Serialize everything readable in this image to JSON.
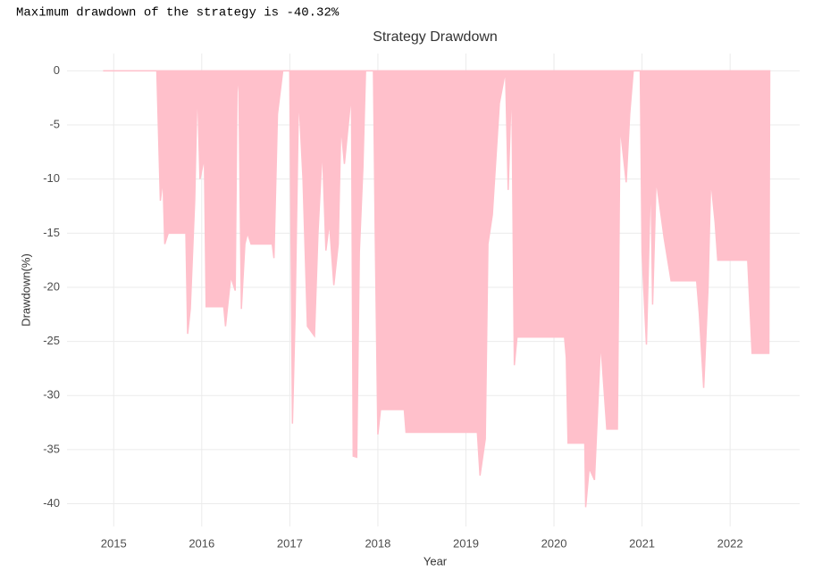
{
  "header": {
    "text": "Maximum drawdown of the strategy is -40.32%"
  },
  "chart_data": {
    "type": "area",
    "title": "Strategy Drawdown",
    "x_label": "Year",
    "y_label": "Drawdown(%)",
    "color": "#ffc0cb",
    "grid": true,
    "xlim": [
      2014.47,
      2022.79
    ],
    "ylim": [
      -42.1,
      1.6
    ],
    "xticks": [
      2015,
      2016,
      2017,
      2018,
      2019,
      2020,
      2021,
      2022
    ],
    "yticks": [
      0,
      -5,
      -10,
      -15,
      -20,
      -25,
      -30,
      -35,
      -40
    ],
    "x": [
      2014.88,
      2015.49,
      2015.5,
      2015.53,
      2015.56,
      2015.58,
      2015.62,
      2015.82,
      2015.84,
      2015.87,
      2015.92,
      2015.95,
      2015.98,
      2016.03,
      2016.05,
      2016.25,
      2016.27,
      2016.33,
      2016.38,
      2016.4,
      2016.42,
      2016.45,
      2016.49,
      2016.52,
      2016.56,
      2016.8,
      2016.82,
      2016.86,
      2016.92,
      2017.0,
      2017.03,
      2017.06,
      2017.1,
      2017.15,
      2017.2,
      2017.28,
      2017.32,
      2017.37,
      2017.41,
      2017.45,
      2017.5,
      2017.55,
      2017.58,
      2017.62,
      2017.7,
      2017.72,
      2017.76,
      2017.79,
      2017.83,
      2017.86,
      2017.95,
      2017.97,
      2018.0,
      2018.03,
      2018.3,
      2018.32,
      2019.13,
      2019.16,
      2019.22,
      2019.25,
      2019.3,
      2019.38,
      2019.45,
      2019.48,
      2019.52,
      2019.55,
      2019.58,
      2020.12,
      2020.14,
      2020.16,
      2020.35,
      2020.36,
      2020.4,
      2020.46,
      2020.53,
      2020.6,
      2020.72,
      2020.75,
      2020.82,
      2020.86,
      2020.9,
      2020.98,
      2021.0,
      2021.05,
      2021.1,
      2021.12,
      2021.16,
      2021.25,
      2021.33,
      2021.62,
      2021.65,
      2021.7,
      2021.75,
      2021.78,
      2021.83,
      2021.86,
      2022.2,
      2022.25,
      2022.44,
      2022.45
    ],
    "values": [
      0,
      0,
      -3,
      -12,
      -10,
      -16,
      -15,
      -15,
      -24.3,
      -22,
      -12,
      -1,
      -10,
      -8,
      -21.8,
      -21.8,
      -23.6,
      -19,
      -20.3,
      -2,
      0,
      -22,
      -16,
      -15,
      -16,
      -16,
      -17.3,
      -4,
      0,
      0,
      -32.6,
      -22.6,
      -2,
      -10,
      -23.6,
      -24.5,
      -15,
      -7,
      -16.6,
      -14,
      -19.8,
      -16,
      -5,
      -8.6,
      -2,
      -35.6,
      -35.7,
      -16.7,
      -9,
      0,
      0,
      -15,
      -33.6,
      -31.3,
      -31.3,
      -33.4,
      -33.4,
      -37.4,
      -34,
      -16,
      -13.3,
      -3,
      0,
      -11,
      -0.5,
      -27.2,
      -24.6,
      -24.6,
      -26.5,
      -34.4,
      -34.4,
      -40.32,
      -36.7,
      -37.8,
      -25,
      -33.1,
      -33.1,
      -5,
      -10.3,
      -4,
      0,
      0,
      -16.8,
      -25.3,
      -9,
      -21.6,
      -10,
      -15.4,
      -19.4,
      -19.4,
      -22.4,
      -29.3,
      -20,
      -10,
      -14,
      -17.5,
      -17.5,
      -26.1,
      -26.1,
      0
    ]
  }
}
